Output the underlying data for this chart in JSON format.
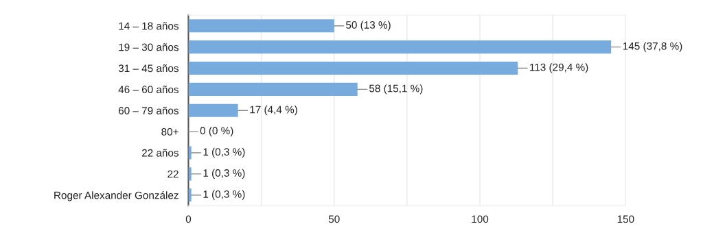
{
  "chart_data": {
    "type": "bar",
    "orientation": "horizontal",
    "categories": [
      "14 – 18 años",
      "19 – 30 años",
      "31 – 45 años",
      "46 – 60 años",
      "60 – 79 años",
      "80+",
      "22 años",
      "22",
      "Roger Alexander González"
    ],
    "values": [
      50,
      145,
      113,
      58,
      17,
      0,
      1,
      1,
      1
    ],
    "value_labels": [
      "50 (13 %)",
      "145 (37,8 %)",
      "113 (29,4 %)",
      "58 (15,1 %)",
      "17 (4,4 %)",
      "0 (0 %)",
      "1 (0,3 %)",
      "1 (0,3 %)",
      "1 (0,3 %)"
    ],
    "color": "#77aadd",
    "xlim": [
      0,
      150
    ],
    "xticks": [
      0,
      {
        "value": 25,
        "label": null
      },
      50,
      {
        "value": 75,
        "label": null
      },
      100,
      {
        "value": 125,
        "label": null
      },
      150
    ],
    "grid": "x",
    "legend": false
  }
}
